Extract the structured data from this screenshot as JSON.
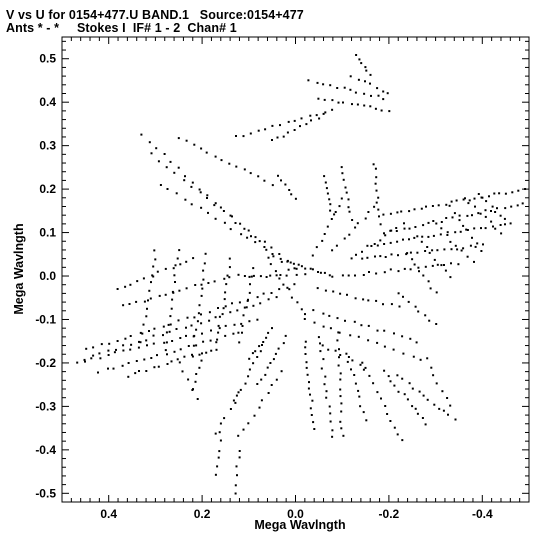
{
  "header": {
    "line1": "V vs U for 0154+477.U BAND.1   Source:0154+477",
    "line2": "Ants * - *     Stokes I  IF# 1 - 2  Chan# 1"
  },
  "chart_data": {
    "type": "scatter",
    "title": "V vs U for 0154+477.U BAND.1   Source:0154+477",
    "subtitle": "Ants * - *     Stokes I  IF# 1 - 2  Chan# 1",
    "xlabel": "Mega Wavlngth",
    "ylabel": "Mega Wavlngth",
    "xlim": [
      0.5,
      -0.5
    ],
    "ylim": [
      -0.52,
      0.55
    ],
    "x_reversed": true,
    "grid": false,
    "marker_color": "#000000",
    "x_ticks": [
      0.4,
      0.2,
      0.0,
      -0.2,
      -0.4
    ],
    "x_tick_labels": [
      "0.4",
      "0.2",
      "0.0",
      "-0.2",
      "-0.4"
    ],
    "y_ticks": [
      0.5,
      0.4,
      0.3,
      0.2,
      0.1,
      0.0,
      -0.1,
      -0.2,
      -0.3,
      -0.4,
      -0.5
    ],
    "y_tick_labels": [
      "0.5",
      "0.4",
      "0.3",
      "0.2",
      "0.1",
      "0.0",
      "-0.1",
      "-0.2",
      "-0.3",
      "-0.4",
      "-0.5"
    ],
    "tracks": [
      {
        "from": [
          0.33,
          0.325
        ],
        "to": [
          0.0,
          0.0
        ],
        "n": 22,
        "spread": 0.006
      },
      {
        "from": [
          0.31,
          0.28
        ],
        "to": [
          -0.02,
          0.005
        ],
        "n": 20,
        "spread": 0.006
      },
      {
        "from": [
          0.29,
          0.21
        ],
        "to": [
          0.0,
          0.02
        ],
        "n": 18,
        "spread": 0.006
      },
      {
        "from": [
          0.25,
          0.32
        ],
        "to": [
          0.05,
          0.21
        ],
        "n": 14,
        "spread": 0.006
      },
      {
        "from": [
          0.13,
          0.32
        ],
        "to": [
          -0.08,
          0.38
        ],
        "n": 14,
        "spread": 0.006
      },
      {
        "from": [
          0.05,
          0.31
        ],
        "to": [
          -0.06,
          0.37
        ],
        "n": 10,
        "spread": 0.006
      },
      {
        "from": [
          -0.05,
          0.41
        ],
        "to": [
          -0.2,
          0.38
        ],
        "n": 12,
        "spread": 0.006
      },
      {
        "from": [
          -0.03,
          0.45
        ],
        "to": [
          -0.19,
          0.41
        ],
        "n": 12,
        "spread": 0.006
      },
      {
        "from": [
          -0.13,
          0.51
        ],
        "to": [
          -0.16,
          0.46
        ],
        "n": 6,
        "spread": 0.006
      },
      {
        "from": [
          -0.12,
          0.46
        ],
        "to": [
          -0.2,
          0.42
        ],
        "n": 7,
        "spread": 0.006
      },
      {
        "from": [
          -0.19,
          0.14
        ],
        "to": [
          -0.49,
          0.2
        ],
        "n": 24,
        "spread": 0.006
      },
      {
        "from": [
          -0.19,
          0.1
        ],
        "to": [
          -0.5,
          0.17
        ],
        "n": 24,
        "spread": 0.006
      },
      {
        "from": [
          -0.16,
          0.07
        ],
        "to": [
          -0.45,
          0.12
        ],
        "n": 22,
        "spread": 0.006
      },
      {
        "from": [
          -0.14,
          0.04
        ],
        "to": [
          -0.4,
          0.07
        ],
        "n": 20,
        "spread": 0.006
      },
      {
        "from": [
          -0.1,
          0.0
        ],
        "to": [
          -0.35,
          0.03
        ],
        "n": 18,
        "spread": 0.006
      },
      {
        "from": [
          -0.18,
          0.12
        ],
        "to": [
          -0.17,
          0.26
        ],
        "n": 10,
        "spread": 0.006
      },
      {
        "from": [
          -0.12,
          0.13
        ],
        "to": [
          -0.1,
          0.25
        ],
        "n": 9,
        "spread": 0.006
      },
      {
        "from": [
          -0.08,
          0.14
        ],
        "to": [
          -0.06,
          0.23
        ],
        "n": 8,
        "spread": 0.006
      },
      {
        "from": [
          0.0,
          0.18
        ],
        "to": [
          0.04,
          0.23
        ],
        "n": 6,
        "spread": 0.006
      },
      {
        "from": [
          0.12,
          0.0
        ],
        "to": [
          0.02,
          0.0
        ],
        "n": 10,
        "spread": 0.006
      },
      {
        "from": [
          0.01,
          0.03
        ],
        "to": [
          -0.08,
          0.0
        ],
        "n": 12,
        "spread": 0.004
      },
      {
        "from": [
          0.06,
          0.04
        ],
        "to": [
          -0.02,
          -0.09
        ],
        "n": 10,
        "spread": 0.006
      },
      {
        "from": [
          0.05,
          -0.12
        ],
        "to": [
          0.1,
          -0.19
        ],
        "n": 8,
        "spread": 0.006
      },
      {
        "from": [
          0.02,
          -0.14
        ],
        "to": [
          0.08,
          -0.25
        ],
        "n": 10,
        "spread": 0.006
      },
      {
        "from": [
          0.07,
          -0.16
        ],
        "to": [
          0.13,
          -0.29
        ],
        "n": 10,
        "spread": 0.006
      },
      {
        "from": [
          -0.02,
          -0.15
        ],
        "to": [
          -0.04,
          -0.35
        ],
        "n": 14,
        "spread": 0.006
      },
      {
        "from": [
          -0.05,
          -0.14
        ],
        "to": [
          -0.08,
          -0.37
        ],
        "n": 14,
        "spread": 0.006
      },
      {
        "from": [
          -0.09,
          -0.13
        ],
        "to": [
          -0.1,
          -0.37
        ],
        "n": 14,
        "spread": 0.006
      },
      {
        "from": [
          -0.11,
          -0.18
        ],
        "to": [
          -0.15,
          -0.33
        ],
        "n": 10,
        "spread": 0.006
      },
      {
        "from": [
          0.03,
          -0.22
        ],
        "to": [
          0.12,
          -0.37
        ],
        "n": 10,
        "spread": 0.006
      },
      {
        "from": [
          0.12,
          -0.4
        ],
        "to": [
          0.13,
          -0.5
        ],
        "n": 6,
        "spread": 0.006
      },
      {
        "from": [
          0.16,
          -0.36
        ],
        "to": [
          0.17,
          -0.46
        ],
        "n": 6,
        "spread": 0.006
      },
      {
        "from": [
          0.12,
          -0.27
        ],
        "to": [
          0.17,
          -0.36
        ],
        "n": 6,
        "spread": 0.006
      },
      {
        "from": [
          -0.14,
          -0.2
        ],
        "to": [
          -0.23,
          -0.38
        ],
        "n": 12,
        "spread": 0.006
      },
      {
        "from": [
          -0.19,
          -0.22
        ],
        "to": [
          -0.28,
          -0.34
        ],
        "n": 12,
        "spread": 0.006
      },
      {
        "from": [
          -0.22,
          -0.23
        ],
        "to": [
          -0.34,
          -0.33
        ],
        "n": 12,
        "spread": 0.006
      },
      {
        "from": [
          -0.28,
          -0.19
        ],
        "to": [
          -0.33,
          -0.3
        ],
        "n": 7,
        "spread": 0.006
      },
      {
        "from": [
          -0.06,
          -0.16
        ],
        "to": [
          -0.15,
          -0.21
        ],
        "n": 8,
        "spread": 0.006
      },
      {
        "from": [
          0.0,
          -0.02
        ],
        "to": [
          0.45,
          -0.17
        ],
        "n": 28,
        "spread": 0.006
      },
      {
        "from": [
          0.04,
          -0.05
        ],
        "to": [
          0.45,
          -0.19
        ],
        "n": 26,
        "spread": 0.006
      },
      {
        "from": [
          0.08,
          -0.1
        ],
        "to": [
          0.47,
          -0.2
        ],
        "n": 24,
        "spread": 0.006
      },
      {
        "from": [
          0.12,
          -0.13
        ],
        "to": [
          0.42,
          -0.22
        ],
        "n": 20,
        "spread": 0.006
      },
      {
        "from": [
          0.18,
          -0.17
        ],
        "to": [
          0.36,
          -0.23
        ],
        "n": 14,
        "spread": 0.006
      },
      {
        "from": [
          0.14,
          0.0
        ],
        "to": [
          0.37,
          -0.07
        ],
        "n": 16,
        "spread": 0.006
      },
      {
        "from": [
          0.22,
          0.04
        ],
        "to": [
          0.38,
          -0.03
        ],
        "n": 12,
        "spread": 0.006
      },
      {
        "from": [
          0.3,
          0.06
        ],
        "to": [
          0.33,
          -0.15
        ],
        "n": 12,
        "spread": 0.006
      },
      {
        "from": [
          0.25,
          0.06
        ],
        "to": [
          0.28,
          -0.17
        ],
        "n": 13,
        "spread": 0.006
      },
      {
        "from": [
          0.19,
          0.05
        ],
        "to": [
          0.22,
          -0.18
        ],
        "n": 13,
        "spread": 0.006
      },
      {
        "from": [
          0.14,
          0.04
        ],
        "to": [
          0.17,
          -0.17
        ],
        "n": 12,
        "spread": 0.006
      },
      {
        "from": [
          0.09,
          0.02
        ],
        "to": [
          0.12,
          -0.15
        ],
        "n": 10,
        "spread": 0.006
      },
      {
        "from": [
          0.2,
          -0.18
        ],
        "to": [
          0.22,
          -0.26
        ],
        "n": 6,
        "spread": 0.006
      },
      {
        "from": [
          0.25,
          -0.2
        ],
        "to": [
          0.21,
          -0.28
        ],
        "n": 5,
        "spread": 0.006
      },
      {
        "from": [
          -0.04,
          0.05
        ],
        "to": [
          -0.1,
          0.18
        ],
        "n": 9,
        "spread": 0.006
      },
      {
        "from": [
          -0.08,
          0.06
        ],
        "to": [
          -0.17,
          0.16
        ],
        "n": 9,
        "spread": 0.006
      },
      {
        "from": [
          -0.12,
          0.04
        ],
        "to": [
          -0.23,
          0.12
        ],
        "n": 10,
        "spread": 0.006
      },
      {
        "from": [
          -0.05,
          -0.03
        ],
        "to": [
          -0.22,
          -0.07
        ],
        "n": 12,
        "spread": 0.006
      },
      {
        "from": [
          -0.04,
          -0.08
        ],
        "to": [
          -0.26,
          -0.15
        ],
        "n": 14,
        "spread": 0.006
      },
      {
        "from": [
          -0.02,
          -0.1
        ],
        "to": [
          -0.27,
          -0.19
        ],
        "n": 14,
        "spread": 0.006
      },
      {
        "from": [
          -0.22,
          -0.04
        ],
        "to": [
          -0.3,
          -0.11
        ],
        "n": 8,
        "spread": 0.006
      },
      {
        "from": [
          -0.24,
          0.05
        ],
        "to": [
          -0.3,
          -0.04
        ],
        "n": 8,
        "spread": 0.006
      },
      {
        "from": [
          -0.26,
          0.09
        ],
        "to": [
          -0.33,
          0.0
        ],
        "n": 8,
        "spread": 0.006
      },
      {
        "from": [
          -0.3,
          0.12
        ],
        "to": [
          -0.38,
          0.03
        ],
        "n": 8,
        "spread": 0.006
      },
      {
        "from": [
          -0.33,
          0.16
        ],
        "to": [
          -0.4,
          0.06
        ],
        "n": 8,
        "spread": 0.006
      },
      {
        "from": [
          -0.36,
          0.18
        ],
        "to": [
          -0.44,
          0.1
        ],
        "n": 8,
        "spread": 0.006
      },
      {
        "from": [
          -0.39,
          0.19
        ],
        "to": [
          -0.46,
          0.12
        ],
        "n": 8,
        "spread": 0.006
      }
    ]
  }
}
